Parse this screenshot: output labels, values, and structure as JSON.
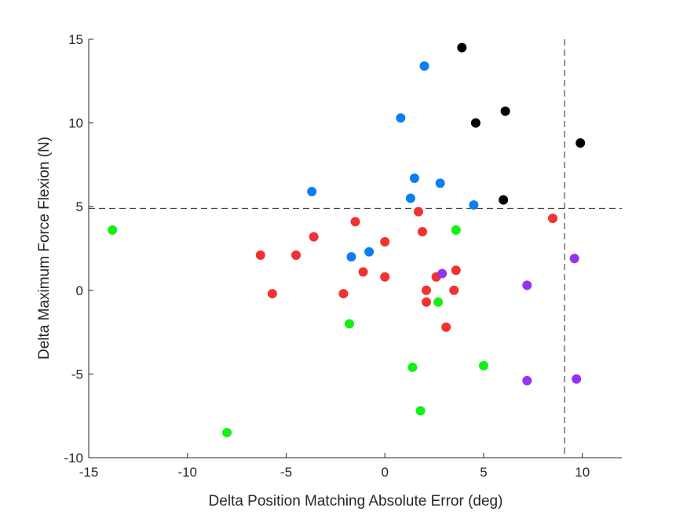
{
  "chart_data": {
    "type": "scatter",
    "xlabel": "Delta Position Matching Absolute Error (deg)",
    "ylabel": "Delta Maximum Force Flexion (N)",
    "xlim": [
      -15,
      12
    ],
    "ylim": [
      -10,
      15
    ],
    "xticks": [
      -15,
      -10,
      -5,
      0,
      5,
      10
    ],
    "yticks": [
      -10,
      -5,
      0,
      5,
      10,
      15
    ],
    "grid": false,
    "box": false,
    "reference_lines": {
      "vertical_x": 9.1,
      "horizontal_y": 4.9,
      "style": "dashed"
    },
    "colors": {
      "black": "#000000",
      "blue": "#0a80f0",
      "red": "#f03232",
      "green": "#14f014",
      "purple": "#9632f0"
    },
    "series": [
      {
        "color": "black",
        "points": [
          [
            3.9,
            14.5
          ],
          [
            4.6,
            10.0
          ],
          [
            6.1,
            10.7
          ],
          [
            9.9,
            8.8
          ],
          [
            6.0,
            5.4
          ]
        ]
      },
      {
        "color": "blue",
        "points": [
          [
            2.0,
            13.4
          ],
          [
            0.8,
            10.3
          ],
          [
            -3.7,
            5.9
          ],
          [
            1.5,
            6.7
          ],
          [
            2.8,
            6.4
          ],
          [
            1.3,
            5.5
          ],
          [
            4.5,
            5.1
          ],
          [
            -0.8,
            2.3
          ],
          [
            -1.7,
            2.0
          ]
        ]
      },
      {
        "color": "red",
        "points": [
          [
            1.7,
            4.7
          ],
          [
            8.5,
            4.3
          ],
          [
            -1.5,
            4.1
          ],
          [
            -3.6,
            3.2
          ],
          [
            1.9,
            3.5
          ],
          [
            0.0,
            2.9
          ],
          [
            -6.3,
            2.1
          ],
          [
            -4.5,
            2.1
          ],
          [
            -1.1,
            1.1
          ],
          [
            0.0,
            0.8
          ],
          [
            3.6,
            1.2
          ],
          [
            2.6,
            0.8
          ],
          [
            -5.7,
            -0.2
          ],
          [
            -2.1,
            -0.2
          ],
          [
            2.1,
            0.0
          ],
          [
            3.5,
            0.0
          ],
          [
            2.1,
            -0.7
          ],
          [
            3.1,
            -2.2
          ]
        ]
      },
      {
        "color": "green",
        "points": [
          [
            -13.8,
            3.6
          ],
          [
            3.6,
            3.6
          ],
          [
            2.7,
            -0.7
          ],
          [
            -1.8,
            -2.0
          ],
          [
            1.4,
            -4.6
          ],
          [
            5.0,
            -4.5
          ],
          [
            1.8,
            -7.2
          ],
          [
            -8.0,
            -8.5
          ]
        ]
      },
      {
        "color": "purple",
        "points": [
          [
            2.9,
            1.0
          ],
          [
            9.6,
            1.9
          ],
          [
            7.2,
            0.3
          ],
          [
            7.2,
            -5.4
          ],
          [
            9.7,
            -5.3
          ]
        ]
      }
    ]
  }
}
